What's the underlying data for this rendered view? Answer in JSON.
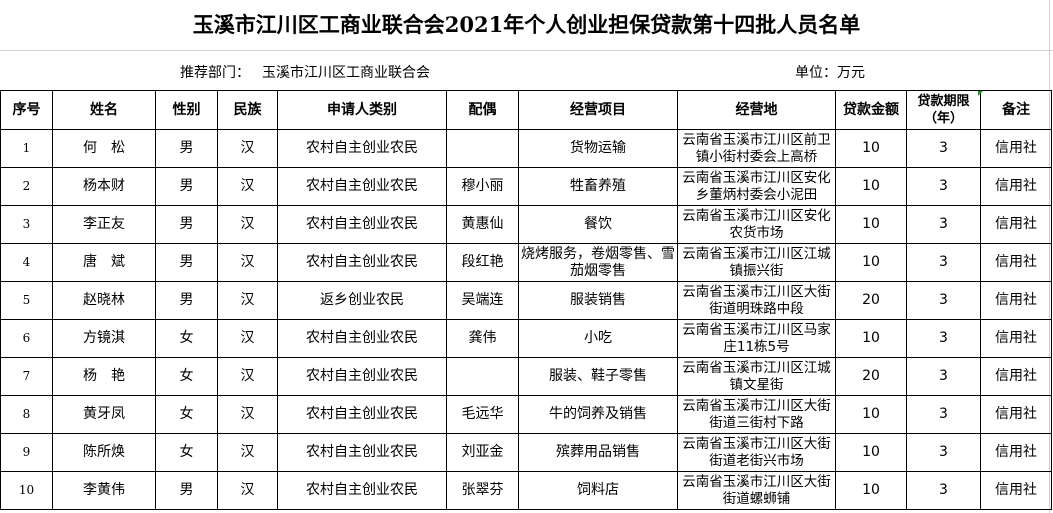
{
  "title": "玉溪市江川区工商业联合会2021年个人创业担保贷款第十四批人员名单",
  "recommend_label": "推荐部门：",
  "recommend_value": "玉溪市江川区工商业联合会",
  "unit": "单位：万元",
  "headers": [
    "序号",
    "姓名",
    "性别",
    "民族",
    "申请人类别",
    "配偶",
    "经营项目",
    "经营地",
    "贷款金额",
    "贷款期限（年）",
    "备注"
  ],
  "rows": [
    [
      "1",
      "何　松",
      "男",
      "汉",
      "农村自主创业农民",
      "",
      "货物运输",
      "云南省玉溪市江川区前卫镇小街村委会上高桥",
      "10",
      "3",
      "信用社"
    ],
    [
      "2",
      "杨本财",
      "男",
      "汉",
      "农村自主创业农民",
      "穆小丽",
      "牲畜养殖",
      "云南省玉溪市江川区安化乡董炳村委会小泥田",
      "10",
      "3",
      "信用社"
    ],
    [
      "3",
      "李正友",
      "男",
      "汉",
      "农村自主创业农民",
      "黄惠仙",
      "餐饮",
      "云南省玉溪市江川区安化农货市场",
      "10",
      "3",
      "信用社"
    ],
    [
      "4",
      "唐　斌",
      "男",
      "汉",
      "农村自主创业农民",
      "段红艳",
      "烧烤服务，卷烟零售、雪茄烟零售",
      "云南省玉溪市江川区江城镇振兴街",
      "10",
      "3",
      "信用社"
    ],
    [
      "5",
      "赵晓林",
      "男",
      "汉",
      "返乡创业农民",
      "吴端连",
      "服装销售",
      "云南省玉溪市江川区大街街道明珠路中段",
      "20",
      "3",
      "信用社"
    ],
    [
      "6",
      "方镜淇",
      "女",
      "汉",
      "农村自主创业农民",
      "龚伟",
      "小吃",
      "云南省玉溪市江川区马家庄11栋5号",
      "10",
      "3",
      "信用社"
    ],
    [
      "7",
      "杨　艳",
      "女",
      "汉",
      "农村自主创业农民",
      "",
      "服装、鞋子零售",
      "云南省玉溪市江川区江城镇文星街",
      "20",
      "3",
      "信用社"
    ],
    [
      "8",
      "黄牙凤",
      "女",
      "汉",
      "农村自主创业农民",
      "毛远华",
      "牛的饲养及销售",
      "云南省玉溪市江川区大街街道三街村下路",
      "10",
      "3",
      "信用社"
    ],
    [
      "9",
      "陈所焕",
      "女",
      "汉",
      "农村自主创业农民",
      "刘亚金",
      "殡葬用品销售",
      "云南省玉溪市江川区大街街道老街兴市场",
      "10",
      "3",
      "信用社"
    ],
    [
      "10",
      "李黄伟",
      "男",
      "汉",
      "农村自主创业农民",
      "张翠芬",
      "饲料店",
      "云南省玉溪市江川区大街街道螺蛳铺",
      "10",
      "3",
      "信用社"
    ]
  ]
}
